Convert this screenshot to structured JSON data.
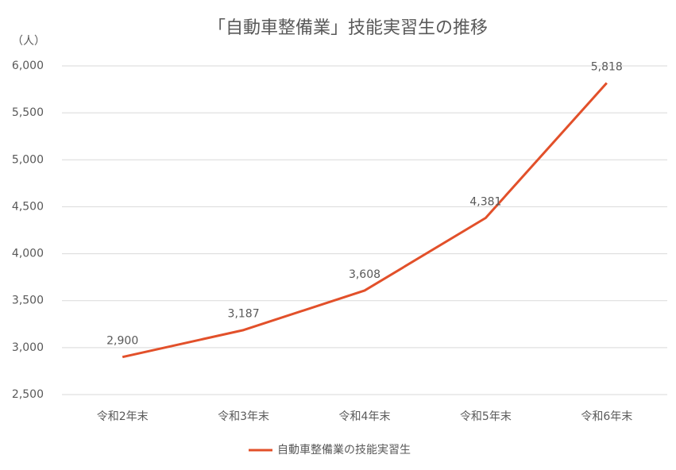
{
  "chart_data": {
    "type": "line",
    "title": "「自動車整備業」技能実習生の推移",
    "y_label": "（人）",
    "categories": [
      "令和2年末",
      "令和3年末",
      "令和4年末",
      "令和5年末",
      "令和6年末"
    ],
    "series": [
      {
        "name": "自動車整備業の技能実習生",
        "color": "#e2502a",
        "values": [
          2900,
          3187,
          3608,
          4381,
          5818
        ],
        "value_labels": [
          "2,900",
          "3,187",
          "3,608",
          "4,381",
          "5,818"
        ]
      }
    ],
    "ylim": [
      2500,
      6000
    ],
    "yticks": [
      {
        "value": 2500,
        "label": "2,500"
      },
      {
        "value": 3000,
        "label": "3,000"
      },
      {
        "value": 3500,
        "label": "3,500"
      },
      {
        "value": 4000,
        "label": "4,000"
      },
      {
        "value": 4500,
        "label": "4,500"
      },
      {
        "value": 5000,
        "label": "5,000"
      },
      {
        "value": 5500,
        "label": "5,500"
      },
      {
        "value": 6000,
        "label": "6,000"
      }
    ],
    "grid": true,
    "legend": "bottom"
  }
}
